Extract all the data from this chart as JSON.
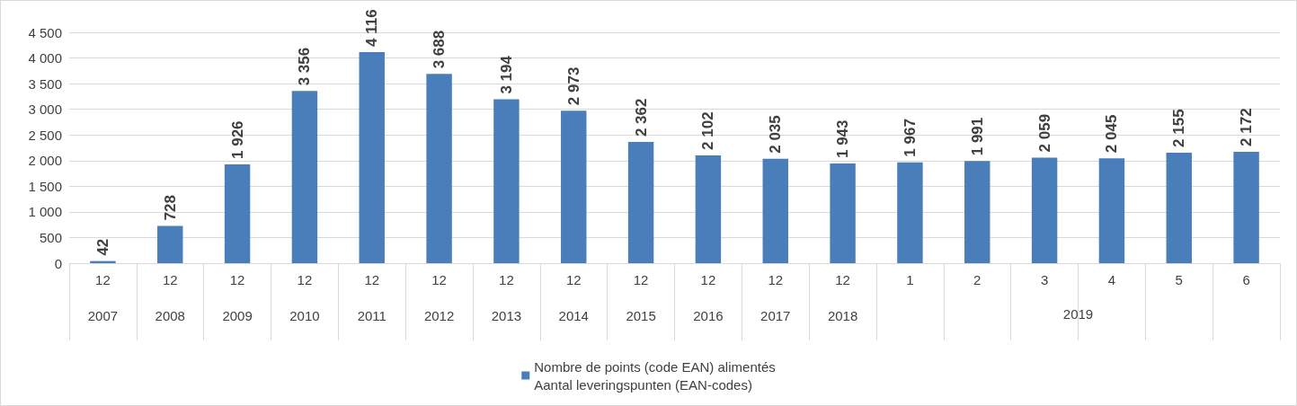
{
  "chart_data": {
    "type": "bar",
    "categories": [
      "12\n2007",
      "12\n2008",
      "12\n2009",
      "12\n2010",
      "12\n2011",
      "12\n2012",
      "12\n2013",
      "12\n2014",
      "12\n2015",
      "12\n2016",
      "12\n2017",
      "12\n2018",
      "1",
      "2",
      "3",
      "4",
      "5",
      "6"
    ],
    "series": [
      {
        "name": "Nombre de points (code EAN) alimentés\nAantal leveringspunten (EAN-codes)",
        "color": "#4a7ebb",
        "values": [
          42,
          728,
          1926,
          3356,
          4116,
          3688,
          3194,
          2973,
          2362,
          2102,
          2035,
          1943,
          1967,
          1991,
          2059,
          2045,
          2155,
          2172
        ],
        "value_labels": [
          "42",
          "728",
          "1 926",
          "3 356",
          "4 116",
          "3 688",
          "3 194",
          "2 973",
          "2 362",
          "2 102",
          "2 035",
          "1 943",
          "1 967",
          "1 991",
          "2 059",
          "2 045",
          "2 155",
          "2 172"
        ]
      }
    ],
    "annotations": [
      "2019"
    ],
    "ylim": [
      0,
      4500
    ],
    "yticks": [
      0,
      500,
      {
        "value": 1000,
        "label": "1 000"
      },
      {
        "value": 1500,
        "label": "1 500"
      },
      {
        "value": 2000,
        "label": "2 000"
      },
      {
        "value": 2500,
        "label": "2 500"
      },
      {
        "value": 3000,
        "label": "3 000"
      },
      {
        "value": 3500,
        "label": "3 500"
      },
      {
        "value": 4000,
        "label": "4 000"
      },
      {
        "value": 4500,
        "label": "4 500"
      }
    ],
    "grid": true,
    "legend": "bottom"
  }
}
